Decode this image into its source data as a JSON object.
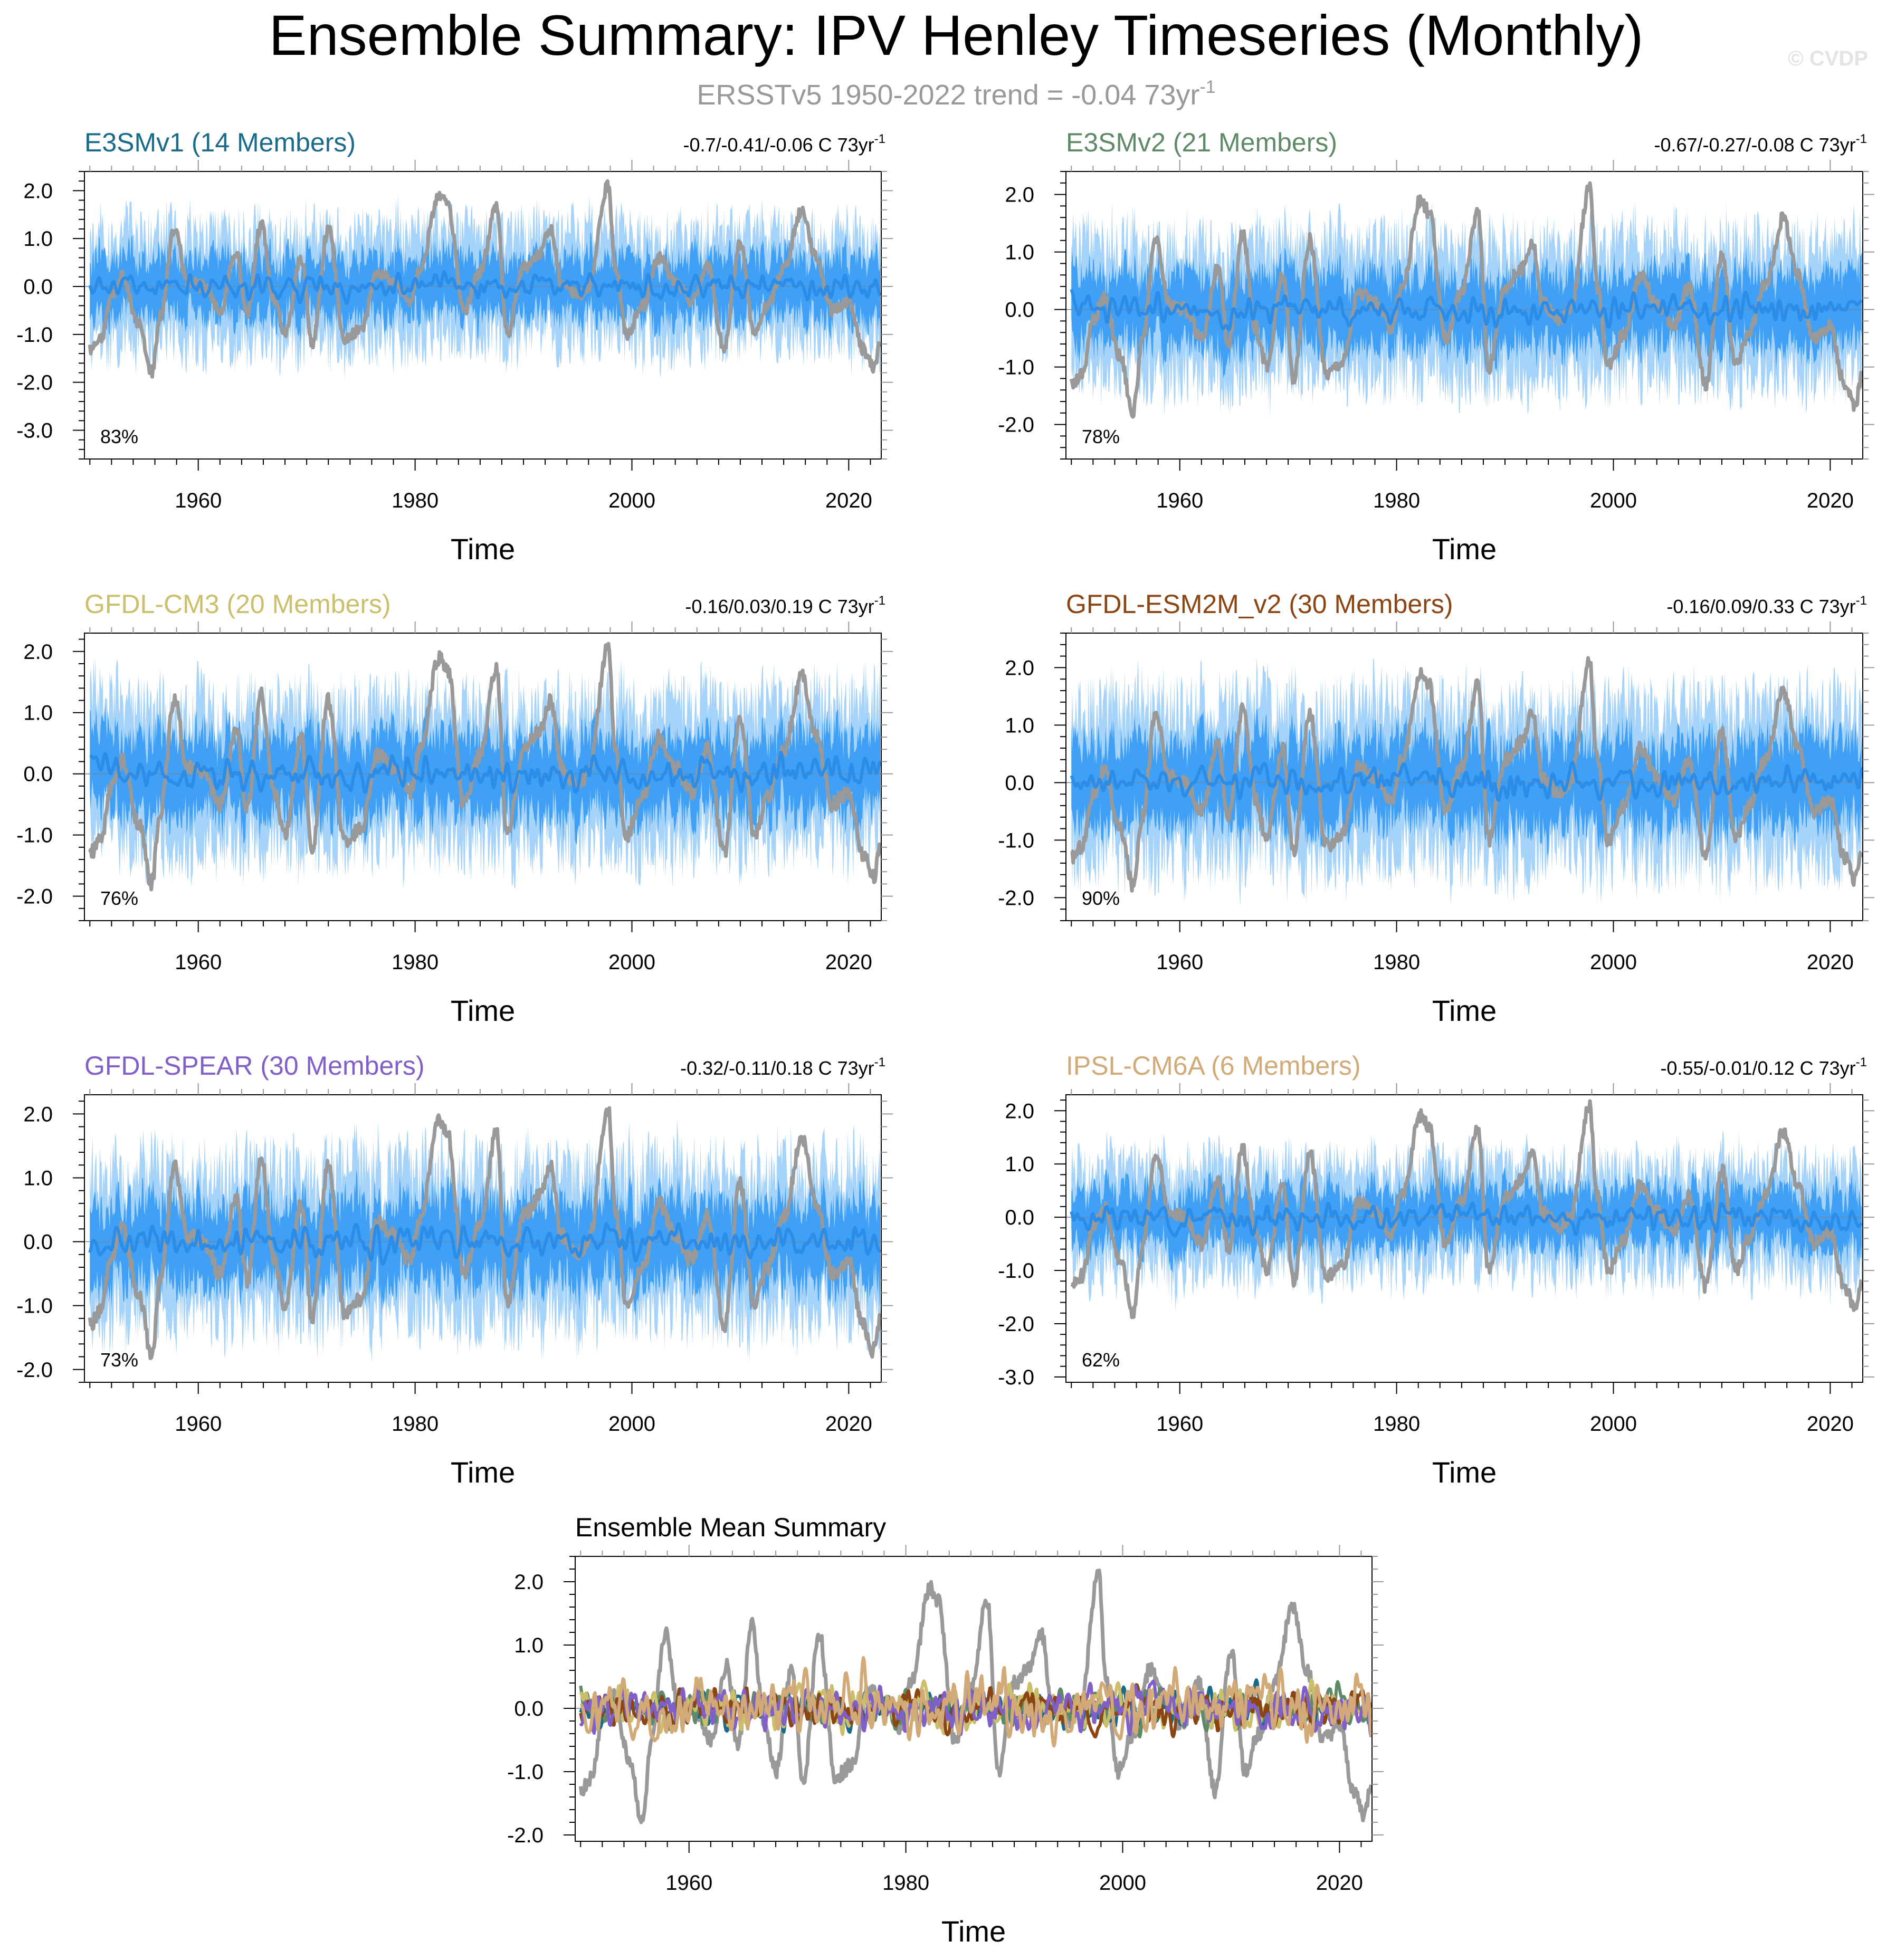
{
  "title": "Ensemble Summary: IPV Henley Timeseries (Monthly)",
  "subtitle": "ERSSTv5 1950-2022 trend = -0.04 73yr",
  "subtitle_sup": "-1",
  "copyright": "© CVDP",
  "colors": {
    "obs": "#999999",
    "band_outer": "#a6d3fa",
    "band_inner": "#3fa0f5",
    "ens_mean": "#2c8de8"
  },
  "chart_data": [
    {
      "type": "line",
      "id": "e3smv1",
      "title": "E3SMv1 (14 Members)",
      "title_color": "#1a6b8a",
      "trend_text": "-0.7/-0.41/-0.06 C 73yr",
      "trend_sup": "-1",
      "percent": "83%",
      "xlabel": "Time",
      "xlim": [
        1949.5,
        2023.0
      ],
      "ylim": [
        -3.6,
        2.4
      ],
      "xticks": [
        1960,
        1980,
        2000,
        2020
      ],
      "yticks": [
        2,
        1,
        0,
        -1,
        -2,
        -3
      ],
      "ytick_labels": [
        "2.0",
        "1.0",
        "0.0",
        "-1.0",
        "-2.0",
        "-3.0"
      ],
      "band_scale": 1.0,
      "seed": 11
    },
    {
      "type": "line",
      "id": "e3smv2",
      "title": "E3SMv2 (21 Members)",
      "title_color": "#5f8a67",
      "trend_text": "-0.67/-0.27/-0.08 C 73yr",
      "trend_sup": "-1",
      "percent": "78%",
      "xlabel": "Time",
      "xlim": [
        1949.5,
        2023.0
      ],
      "ylim": [
        -2.6,
        2.4
      ],
      "xticks": [
        1960,
        1980,
        2000,
        2020
      ],
      "yticks": [
        2,
        1,
        0,
        -1,
        -2
      ],
      "ytick_labels": [
        "2.0",
        "1.0",
        "0.0",
        "-1.0",
        "-2.0"
      ],
      "band_scale": 1.0,
      "seed": 23
    },
    {
      "type": "line",
      "id": "gfdl-cm3",
      "title": "GFDL-CM3 (20 Members)",
      "title_color": "#cbbf6c",
      "trend_text": "-0.16/0.03/0.19 C 73yr",
      "trend_sup": "-1",
      "percent": "76%",
      "xlabel": "Time",
      "xlim": [
        1949.5,
        2023.0
      ],
      "ylim": [
        -2.4,
        2.3
      ],
      "xticks": [
        1960,
        1980,
        2000,
        2020
      ],
      "yticks": [
        2,
        1,
        0,
        -1,
        -2
      ],
      "ytick_labels": [
        "2.0",
        "1.0",
        "0.0",
        "-1.0",
        "-2.0"
      ],
      "band_scale": 1.0,
      "seed": 37
    },
    {
      "type": "line",
      "id": "gfdl-esm2m-v2",
      "title": "GFDL-ESM2M_v2 (30 Members)",
      "title_color": "#8b4513",
      "trend_text": "-0.16/0.09/0.33 C 73yr",
      "trend_sup": "-1",
      "percent": "90%",
      "xlabel": "Time",
      "xlim": [
        1949.5,
        2023.0
      ],
      "ylim": [
        -2.4,
        2.6
      ],
      "xticks": [
        1960,
        1980,
        2000,
        2020
      ],
      "yticks": [
        2,
        1,
        0,
        -1,
        -2
      ],
      "ytick_labels": [
        "2.0",
        "1.0",
        "0.0",
        "-1.0",
        "-2.0"
      ],
      "band_scale": 1.15,
      "seed": 41
    },
    {
      "type": "line",
      "id": "gfdl-spear",
      "title": "GFDL-SPEAR (30 Members)",
      "title_color": "#8060c8",
      "trend_text": "-0.32/-0.11/0.18 C 73yr",
      "trend_sup": "-1",
      "percent": "73%",
      "xlabel": "Time",
      "xlim": [
        1949.5,
        2023.0
      ],
      "ylim": [
        -2.2,
        2.3
      ],
      "xticks": [
        1960,
        1980,
        2000,
        2020
      ],
      "yticks": [
        2,
        1,
        0,
        -1,
        -2
      ],
      "ytick_labels": [
        "2.0",
        "1.0",
        "0.0",
        "-1.0",
        "-2.0"
      ],
      "band_scale": 1.0,
      "seed": 53
    },
    {
      "type": "line",
      "id": "ipsl-cm6a",
      "title": "IPSL-CM6A (6 Members)",
      "title_color": "#d2aa78",
      "trend_text": "-0.55/-0.01/0.12 C 73yr",
      "trend_sup": "-1",
      "percent": "62%",
      "xlabel": "Time",
      "xlim": [
        1949.5,
        2023.0
      ],
      "ylim": [
        -3.1,
        2.3
      ],
      "xticks": [
        1960,
        1980,
        2000,
        2020
      ],
      "yticks": [
        2,
        1,
        0,
        -1,
        -2,
        -3
      ],
      "ytick_labels": [
        "2.0",
        "1.0",
        "0.0",
        "-1.0",
        "-2.0",
        "-3.0"
      ],
      "band_scale": 0.85,
      "seed": 67
    },
    {
      "type": "line",
      "id": "ensemble-mean",
      "title": "Ensemble Mean Summary",
      "title_color": "#000000",
      "xlabel": "Time",
      "xlim": [
        1949.5,
        2023.0
      ],
      "ylim": [
        -2.1,
        2.4
      ],
      "xticks": [
        1960,
        1980,
        2000,
        2020
      ],
      "yticks": [
        2,
        1,
        0,
        -1,
        -2
      ],
      "ytick_labels": [
        "2.0",
        "1.0",
        "0.0",
        "-1.0",
        "-2.0"
      ],
      "series": [
        {
          "name": "E3SMv1",
          "color": "#1a6b8a",
          "seed": 101
        },
        {
          "name": "E3SMv2",
          "color": "#5f8a67",
          "seed": 102
        },
        {
          "name": "GFDL-CM3",
          "color": "#cbbf6c",
          "seed": 103
        },
        {
          "name": "GFDL-ESM2M_v2",
          "color": "#8b4513",
          "seed": 104
        },
        {
          "name": "GFDL-SPEAR",
          "color": "#8060c8",
          "seed": 105
        },
        {
          "name": "IPSL-CM6A",
          "color": "#d2aa78",
          "seed": 106
        }
      ]
    }
  ],
  "obs_anchors": [
    [
      1950.0,
      -1.3
    ],
    [
      1951.0,
      -1.1
    ],
    [
      1952.0,
      -0.2
    ],
    [
      1953.0,
      0.2
    ],
    [
      1954.5,
      -0.8
    ],
    [
      1955.7,
      -1.8
    ],
    [
      1956.5,
      -0.6
    ],
    [
      1957.8,
      1.2
    ],
    [
      1959.0,
      0.1
    ],
    [
      1960.5,
      0.0
    ],
    [
      1962.0,
      -0.5
    ],
    [
      1963.5,
      0.7
    ],
    [
      1964.5,
      -0.6
    ],
    [
      1965.8,
      1.3
    ],
    [
      1967.0,
      -0.3
    ],
    [
      1968.0,
      -1.0
    ],
    [
      1969.5,
      0.6
    ],
    [
      1970.5,
      -1.2
    ],
    [
      1972.0,
      1.2
    ],
    [
      1973.5,
      -1.1
    ],
    [
      1975.0,
      -0.9
    ],
    [
      1976.5,
      0.3
    ],
    [
      1978.0,
      0.1
    ],
    [
      1979.5,
      -0.3
    ],
    [
      1980.5,
      0.4
    ],
    [
      1982.2,
      1.9
    ],
    [
      1983.0,
      1.7
    ],
    [
      1984.5,
      -0.5
    ],
    [
      1986.0,
      0.3
    ],
    [
      1987.5,
      1.7
    ],
    [
      1988.5,
      -1.0
    ],
    [
      1990.0,
      0.4
    ],
    [
      1991.5,
      0.7
    ],
    [
      1992.5,
      1.2
    ],
    [
      1993.5,
      0.1
    ],
    [
      1995.0,
      -0.2
    ],
    [
      1996.0,
      0.0
    ],
    [
      1997.8,
      2.1
    ],
    [
      1998.5,
      0.4
    ],
    [
      1999.5,
      -1.0
    ],
    [
      2001.0,
      -0.4
    ],
    [
      2002.5,
      0.6
    ],
    [
      2004.0,
      0.1
    ],
    [
      2005.5,
      -0.3
    ],
    [
      2007.0,
      0.4
    ],
    [
      2008.5,
      -1.3
    ],
    [
      2010.0,
      0.9
    ],
    [
      2011.3,
      -1.0
    ],
    [
      2012.5,
      -0.4
    ],
    [
      2014.0,
      0.4
    ],
    [
      2015.7,
      1.6
    ],
    [
      2017.0,
      0.6
    ],
    [
      2018.5,
      -0.5
    ],
    [
      2020.0,
      -0.3
    ],
    [
      2021.3,
      -1.3
    ],
    [
      2022.3,
      -1.7
    ],
    [
      2022.9,
      -1.2
    ]
  ]
}
